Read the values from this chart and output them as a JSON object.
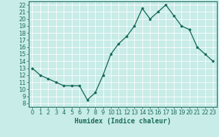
{
  "x": [
    0,
    1,
    2,
    3,
    4,
    5,
    6,
    7,
    8,
    9,
    10,
    11,
    12,
    13,
    14,
    15,
    16,
    17,
    18,
    19,
    20,
    21,
    22,
    23
  ],
  "y": [
    13,
    12,
    11.5,
    11,
    10.5,
    10.5,
    10.5,
    8.5,
    9.5,
    12,
    15,
    16.5,
    17.5,
    19,
    21.5,
    20,
    21,
    22,
    20.5,
    19,
    18.5,
    16,
    15,
    14
  ],
  "line_color": "#1a6b5a",
  "marker": "o",
  "marker_size": 1.8,
  "linewidth": 1.0,
  "bg_color": "#c8ece8",
  "grid_color": "#ffffff",
  "xlabel": "Humidex (Indice chaleur)",
  "xlabel_fontsize": 7.0,
  "xlabel_color": "#1a6b5a",
  "tick_color": "#1a6b5a",
  "tick_fontsize": 6.0,
  "ylim": [
    7.5,
    22.5
  ],
  "xlim": [
    -0.5,
    23.5
  ],
  "yticks": [
    8,
    9,
    10,
    11,
    12,
    13,
    14,
    15,
    16,
    17,
    18,
    19,
    20,
    21,
    22
  ],
  "xticks": [
    0,
    1,
    2,
    3,
    4,
    5,
    6,
    7,
    8,
    9,
    10,
    11,
    12,
    13,
    14,
    15,
    16,
    17,
    18,
    19,
    20,
    21,
    22,
    23
  ]
}
